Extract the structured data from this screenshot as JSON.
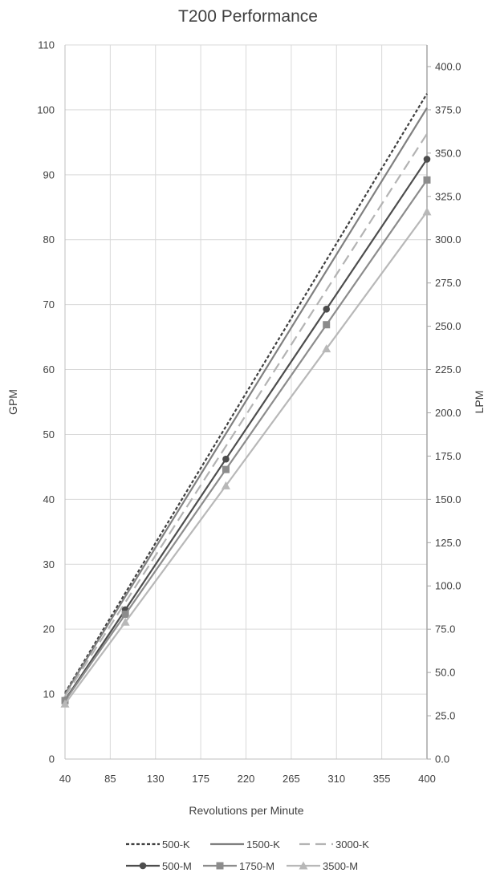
{
  "chart_data": {
    "type": "line",
    "title": "T200 Performance",
    "xlabel": "Revolutions per Minute",
    "ylabel": "GPM",
    "y2label": "LPM",
    "xlim": [
      40,
      400
    ],
    "ylim": [
      0,
      110
    ],
    "y2lim": [
      0,
      412.5
    ],
    "x_ticks": [
      "40",
      "85",
      "130",
      "175",
      "220",
      "265",
      "310",
      "355",
      "400"
    ],
    "y_ticks": [
      "0",
      "10",
      "20",
      "30",
      "40",
      "50",
      "60",
      "70",
      "80",
      "90",
      "100",
      "110"
    ],
    "y2_ticks": [
      "0.0",
      "25.0",
      "50.0",
      "75.0",
      "100.0",
      "125.0",
      "150.0",
      "175.0",
      "200.0",
      "225.0",
      "250.0",
      "275.0",
      "300.0",
      "325.0",
      "350.0",
      "375.0",
      "400.0"
    ],
    "grid": true,
    "legend_position": "bottom",
    "series": [
      {
        "name": "500-K",
        "color": "#404040",
        "style": "dotted",
        "marker": "none",
        "x": [
          40,
          400
        ],
        "y": [
          10.2,
          102.5
        ]
      },
      {
        "name": "1500-K",
        "color": "#808080",
        "style": "solid",
        "marker": "none",
        "x": [
          40,
          400
        ],
        "y": [
          10.0,
          100.3
        ]
      },
      {
        "name": "3000-K",
        "color": "#b3b3b3",
        "style": "dashed",
        "marker": "none",
        "x": [
          40,
          400
        ],
        "y": [
          9.7,
          96.3
        ]
      },
      {
        "name": "500-M",
        "color": "#4d4d4d",
        "style": "solid",
        "marker": "circle",
        "x": [
          40,
          100,
          200,
          300,
          400
        ],
        "y": [
          9.1,
          23.0,
          46.2,
          69.3,
          92.4
        ]
      },
      {
        "name": "1750-M",
        "color": "#8c8c8c",
        "style": "solid",
        "marker": "square",
        "x": [
          40,
          100,
          200,
          300,
          400
        ],
        "y": [
          9.0,
          22.3,
          44.6,
          66.9,
          89.2
        ]
      },
      {
        "name": "3500-M",
        "color": "#b8b8b8",
        "style": "solid",
        "marker": "triangle",
        "x": [
          40,
          100,
          200,
          300,
          400
        ],
        "y": [
          8.5,
          21.1,
          42.1,
          63.2,
          84.3
        ]
      }
    ]
  }
}
